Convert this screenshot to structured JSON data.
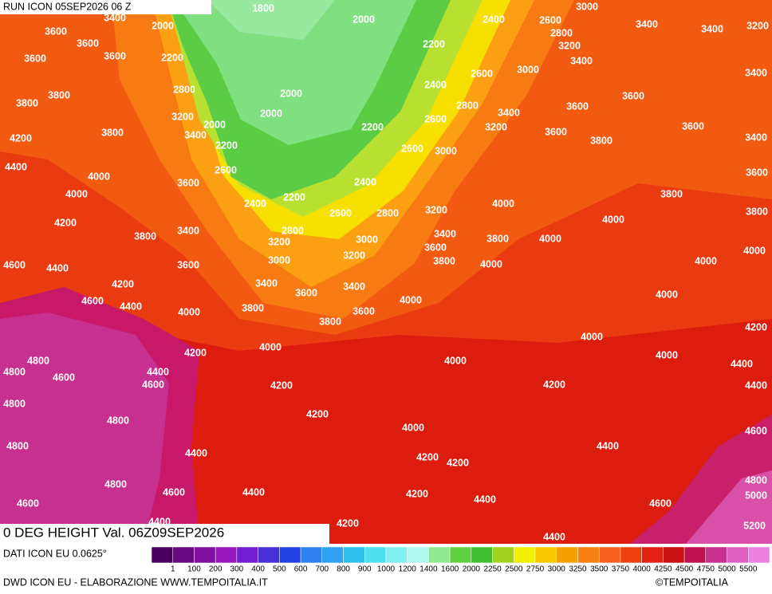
{
  "header": {
    "run": "RUN ICON 05SEP2026 06 Z"
  },
  "footer": {
    "title": "0 DEG HEIGHT Val. 06Z09SEP2026",
    "source": "DATI ICON EU 0.0625°",
    "credit": "DWD ICON EU - ELABORAZIONE WWW.TEMPOITALIA.IT",
    "copyright": "©TEMPOITALIA"
  },
  "legend": {
    "labels": [
      1,
      100,
      200,
      300,
      400,
      500,
      600,
      700,
      800,
      900,
      1000,
      1200,
      1400,
      1600,
      2000,
      2250,
      2500,
      2750,
      3000,
      3250,
      3500,
      3750,
      4000,
      4250,
      4500,
      4750,
      5000,
      5500
    ],
    "colors": [
      "#4b0060",
      "#6a0a80",
      "#8010a0",
      "#9a18c0",
      "#7020d0",
      "#4830d8",
      "#2040e0",
      "#3080f0",
      "#30a0f0",
      "#30c0f0",
      "#50e0f0",
      "#80f0f0",
      "#b0f8f0",
      "#90e890",
      "#60d040",
      "#40c030",
      "#a0d020",
      "#f0f000",
      "#f8c800",
      "#f8a000",
      "#f88010",
      "#f86020",
      "#f04010",
      "#e02010",
      "#c81010",
      "#c01050",
      "#c83090",
      "#e060c0",
      "#f080e0"
    ]
  },
  "contour_labels": [
    3400,
    1800,
    2000,
    2000,
    2400,
    2600,
    3000,
    3400,
    3400,
    3200,
    2800,
    3600,
    3600,
    3600,
    3600,
    2200,
    2200,
    3200,
    3400,
    3000,
    2600,
    3400,
    2800,
    3800,
    3800,
    2000,
    2400,
    2800,
    3600,
    3600,
    3200,
    2000,
    3400,
    2000,
    2200,
    2600,
    3200,
    3600,
    3600,
    3800,
    3400,
    4200,
    3400,
    3800,
    2200,
    2600,
    3000,
    4400,
    4000,
    2600,
    3600,
    3600,
    2400,
    4000,
    2200,
    3800,
    4000,
    2400,
    2600,
    2800,
    3200,
    3800,
    4000,
    4200,
    3400,
    2800,
    3800,
    3400,
    3800,
    4000,
    3000,
    3200,
    3600,
    4000,
    3200,
    3000,
    3800,
    4000,
    4000,
    4600,
    4400,
    3600,
    4200,
    3400,
    3400,
    3600,
    4000,
    4000,
    4600,
    4400,
    3800,
    3600,
    4000,
    3800,
    4200,
    4000,
    4200,
    4000,
    4000,
    4800,
    4000,
    4400,
    4400,
    4600,
    4800,
    4600,
    4200,
    4200,
    4400,
    4800,
    4200,
    4800,
    4000,
    4600,
    4800,
    4400,
    4200,
    4200,
    4400,
    4800,
    4800,
    4600,
    4400,
    4200,
    4400,
    4600,
    5000,
    4600,
    4200,
    5200,
    4400,
    4400
  ]
}
